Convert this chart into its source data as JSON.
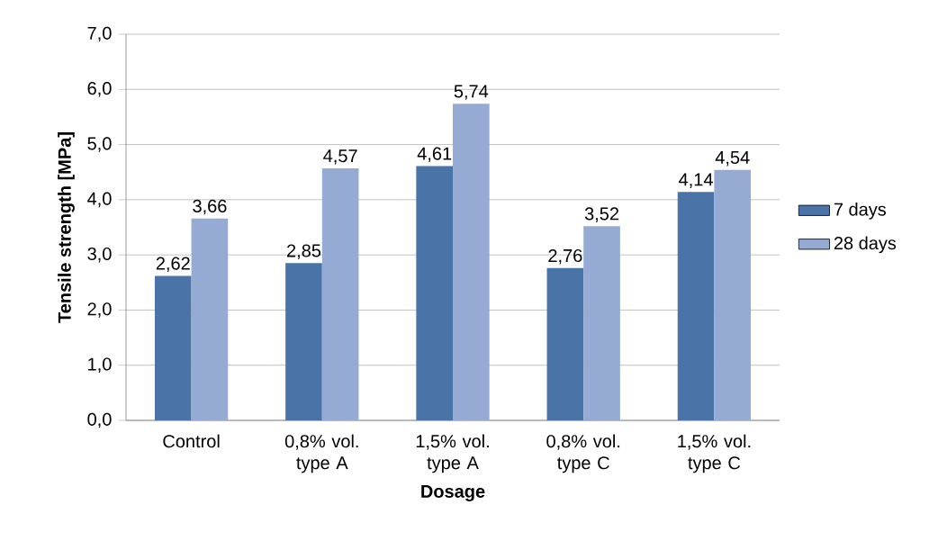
{
  "chart_data": {
    "type": "bar",
    "xlabel": "Dosage",
    "ylabel": "Tensile strength [MPa]",
    "categories": [
      "Control",
      "0,8% vol. type A",
      "1,5% vol. type A",
      "0,8% vol. type C",
      "1,5% vol. type C"
    ],
    "series": [
      {
        "name": "7 days",
        "color": "#4a73a8",
        "values": [
          2.62,
          2.85,
          4.61,
          2.76,
          4.14
        ],
        "value_labels": [
          "2,62",
          "2,85",
          "4,61",
          "2,76",
          "4,14"
        ]
      },
      {
        "name": "28 days",
        "color": "#95abd3",
        "values": [
          3.66,
          4.57,
          5.74,
          3.52,
          4.54
        ],
        "value_labels": [
          "3,66",
          "4,57",
          "5,74",
          "3,52",
          "4,54"
        ]
      }
    ],
    "ylim": [
      0,
      7
    ],
    "yticks": [
      {
        "value": 0,
        "label": "0,0"
      },
      {
        "value": 1,
        "label": "1,0"
      },
      {
        "value": 2,
        "label": "2,0"
      },
      {
        "value": 3,
        "label": "3,0"
      },
      {
        "value": 4,
        "label": "4,0"
      },
      {
        "value": 5,
        "label": "5,0"
      },
      {
        "value": 6,
        "label": "6,0"
      },
      {
        "value": 7,
        "label": "7,0"
      }
    ],
    "grid": "y",
    "legend": "right"
  }
}
